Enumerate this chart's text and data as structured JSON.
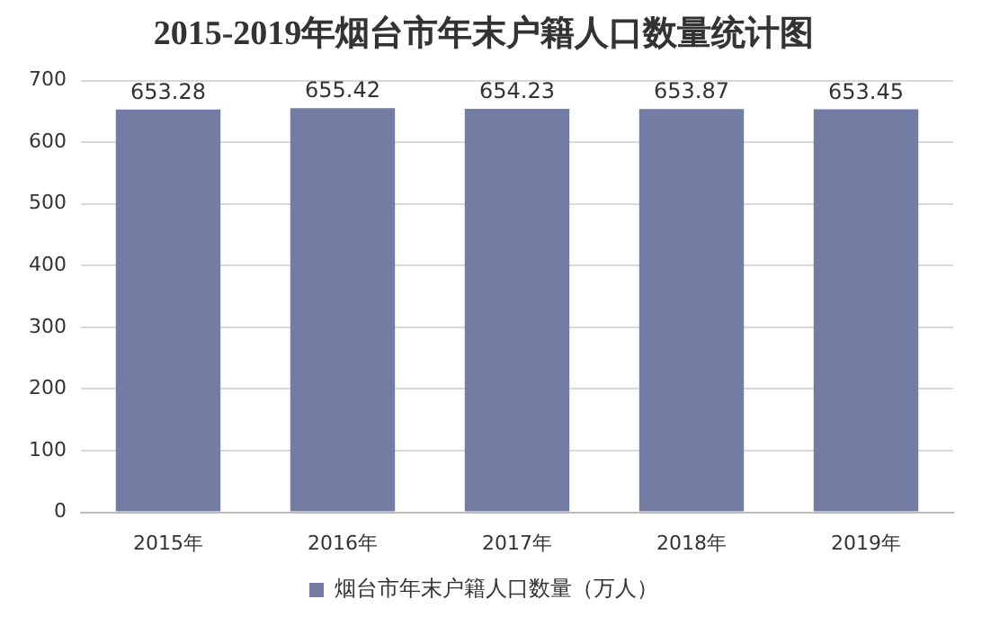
{
  "chart_data": {
    "type": "bar",
    "title": "2015-2019年烟台市年末户籍人口数量统计图",
    "categories": [
      "2015年",
      "2016年",
      "2017年",
      "2018年",
      "2019年"
    ],
    "series": [
      {
        "name": "烟台市年末户籍人口数量（万人）",
        "color": "#737ca3",
        "values": [
          653.28,
          655.42,
          654.23,
          653.87,
          653.45
        ]
      }
    ],
    "ylim": [
      0,
      700
    ],
    "yticks": [
      0,
      100,
      200,
      300,
      400,
      500,
      600,
      700
    ],
    "grid": "y",
    "legend": "bottom",
    "data_labels": true
  }
}
